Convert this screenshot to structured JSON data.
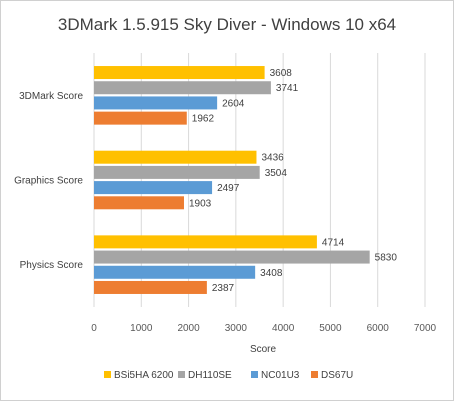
{
  "chart_data": {
    "type": "bar",
    "orientation": "horizontal",
    "title": "3DMark 1.5.915 Sky Diver - Windows 10 x64",
    "xlabel": "Score",
    "ylabel": "",
    "xlim": [
      0,
      7000
    ],
    "x_ticks": [
      0,
      1000,
      2000,
      3000,
      4000,
      5000,
      6000,
      7000
    ],
    "grid": true,
    "legend_position": "bottom",
    "categories": [
      "3DMark Score",
      "Graphics Score",
      "Physics Score"
    ],
    "series": [
      {
        "name": "BSi5HA 6200",
        "color": "#FFC000",
        "values": [
          3608,
          3436,
          4714
        ]
      },
      {
        "name": "DH110SE",
        "color": "#A5A5A5",
        "values": [
          3741,
          3504,
          5830
        ]
      },
      {
        "name": "NC01U3",
        "color": "#5B9BD5",
        "values": [
          2604,
          2497,
          3408
        ]
      },
      {
        "name": "DS67U",
        "color": "#ED7D31",
        "values": [
          1962,
          1903,
          2387
        ]
      }
    ]
  }
}
